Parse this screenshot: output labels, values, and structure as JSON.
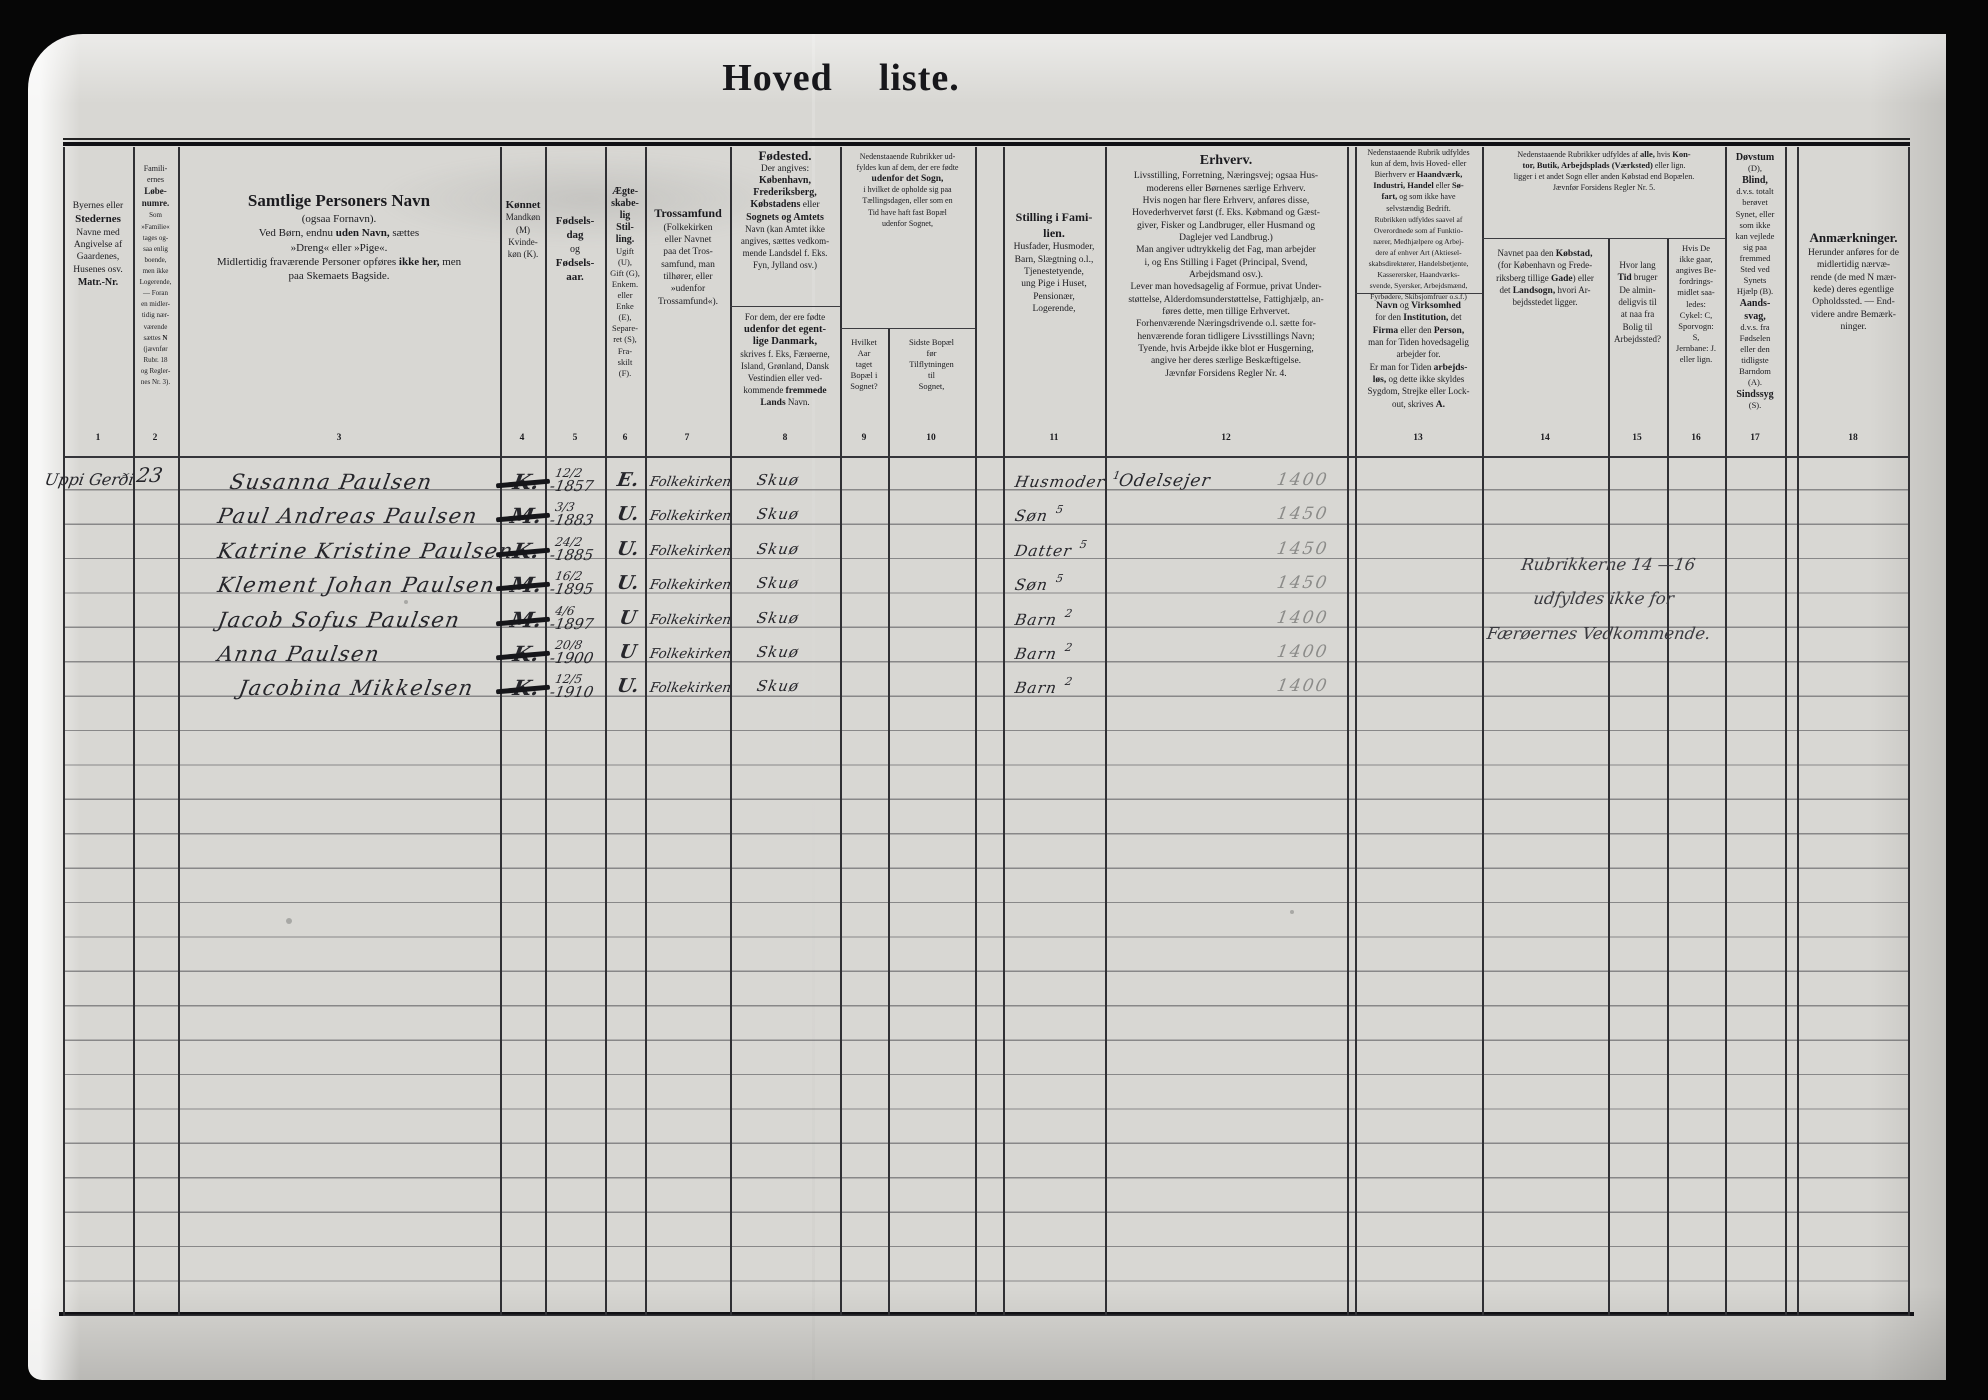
{
  "title": {
    "word1": "Hoved",
    "word2": "liste."
  },
  "col_numbers": [
    "1",
    "2",
    "3",
    "4",
    "5",
    "6",
    "7",
    "8",
    "9",
    "10",
    "11",
    "12",
    "13",
    "14",
    "15",
    "16",
    "17",
    "18"
  ],
  "header": {
    "col1": [
      {
        "t": "Byernes eller\n"
      },
      {
        "t": "Stedernes\n",
        "b": 1,
        "fs": 11
      },
      {
        "t": "Navne med\nAngivelse af\nGaardenes,\nHusenes osv.\n"
      },
      {
        "t": "Matr.-Nr.",
        "b": 1,
        "fs": 10
      }
    ],
    "col2": [
      {
        "t": "Famili-\nernes\n",
        "fs": 8
      },
      {
        "t": "Løbe-\nnumre.\n",
        "b": 1,
        "fs": 9
      },
      {
        "t": "Som\n»Familie«\ntages og-\nsaa enlig\nboende,\nmen ikke\nLogerende,\n— Foran\nen midler-\ntidig nær-\nværende\nsættes ",
        "fs": 7
      },
      {
        "t": "N\n",
        "b": 1,
        "fs": 7
      },
      {
        "t": "(jævnfør\nRubr. 18\nog Regler-\nnes Nr. 3).",
        "fs": 7
      }
    ],
    "col3": [
      {
        "t": "Samtlige Personers Navn\n",
        "b": 1,
        "fs": 17
      },
      {
        "t": "(ogsaa Fornavn).\n",
        "fs": 11
      },
      {
        "t": "Ved Børn, endnu ",
        "fs": 11
      },
      {
        "t": "uden Navn,",
        "b": 1,
        "fs": 11
      },
      {
        "t": " sættes\n»Dreng« eller »Pige«.\n",
        "fs": 11
      },
      {
        "t": "Midlertidig fraværende Personer opføres ",
        "fs": 11
      },
      {
        "t": "ikke her,",
        "b": 1,
        "fs": 11
      },
      {
        "t": " men\npaa Skemaets Bagside.",
        "fs": 11
      }
    ],
    "col4": [
      {
        "t": "Kønnet\n",
        "b": 1,
        "fs": 11
      },
      {
        "t": "Mandkøn\n(M)\nKvinde-\nkøn (K).",
        "fs": 9
      }
    ],
    "col5": [
      {
        "t": "Fødsels-\ndag\n",
        "b": 1,
        "fs": 11
      },
      {
        "t": "og\n",
        "fs": 10
      },
      {
        "t": "Fødsels-\naar.",
        "b": 1,
        "fs": 11
      }
    ],
    "col6": [
      {
        "t": "Ægte-\nskabe-\nlig\nStil-\nling.\n",
        "b": 1,
        "fs": 10
      },
      {
        "t": "Ugift\n(U),\nGift (G),\nEnkem.\neller\nEnke\n(E),\nSepare-\nret (S),\nFra-\nskilt\n(F).",
        "fs": 8.5
      }
    ],
    "col7": [
      {
        "t": "Trossamfund\n",
        "b": 1,
        "fs": 12
      },
      {
        "t": "(Folkekirken\neller Navnet\npaa det Tros-\nsamfund, man\ntilhører, eller\n»udenfor\nTrossamfund«).",
        "fs": 9.5
      }
    ],
    "col8a": [
      {
        "t": "Fødested.\n",
        "b": 1,
        "fs": 13
      },
      {
        "t": "Der angives:\n",
        "fs": 9.5
      },
      {
        "t": "København,\nFrederiksberg,\n",
        "b": 1,
        "fs": 10
      },
      {
        "t": "Købstadens",
        "b": 1,
        "fs": 10
      },
      {
        "t": " eller\n",
        "fs": 9.5
      },
      {
        "t": "Sognets og Amtets\n",
        "b": 1,
        "fs": 10
      },
      {
        "t": "Navn (kan Amtet ikke\nangives, sættes vedkom-\nmende Landsdel f. Eks.\nFyn, Jylland osv.)",
        "fs": 9
      }
    ],
    "col8b": [
      {
        "t": "For dem, der ere fødte\n",
        "fs": 9
      },
      {
        "t": "udenfor det egent-\nlige Danmark,\n",
        "b": 1,
        "fs": 10.5
      },
      {
        "t": "skrives f. Eks, Færøerne,\nIsland, Grønland, Dansk\nVestindien eller ved-\nkommende ",
        "fs": 9
      },
      {
        "t": "fremmede\nLands",
        "b": 1,
        "fs": 9.5
      },
      {
        "t": " Navn.",
        "fs": 9
      }
    ],
    "col9_10": [
      {
        "t": "Nedenstaaende Rubrikker ud-\nfyldes kun af dem, der ere fødte\n",
        "fs": 8
      },
      {
        "t": "udenfor det Sogn,\n",
        "b": 1,
        "fs": 9.5
      },
      {
        "t": "i hvilket de opholde sig paa\nTællingsdagen, eller som en\nTid have haft fast Bopæl\nudenfor Sognet,",
        "fs": 8
      }
    ],
    "col9": [
      {
        "t": "Hvilket\nAar\ntaget\nBopæl i\nSognet?",
        "fs": 8.5
      }
    ],
    "col10": [
      {
        "t": "Sidste Bopæl\nfør\nTilflytningen\ntil\nSognet,",
        "fs": 8.5
      }
    ],
    "col11": [
      {
        "t": "Stilling i Fami-\nlien.\n",
        "b": 1,
        "fs": 12
      },
      {
        "t": "Husfader, Husmoder,\nBarn, Slægtning o.l.,\nTjenestetyende,\nung Pige i Huset,\nPensionær,\nLogerende,",
        "fs": 9.5
      }
    ],
    "col12": [
      {
        "t": "Erhverv.\n",
        "b": 1,
        "fs": 14
      },
      {
        "t": "Livsstilling, Forretning, Næringsvej; ogsaa Hus-\nmoderens eller Børnenes særlige Erhverv.\nHvis nogen har flere Erhverv, anføres disse,\nHovederhvervet først (f. Eks. Købmand og Gæst-\ngiver, Fisker og Landbruger, eller Husmand og\nDaglejer ved Landbrug.)\nMan angiver udtrykkelig det Fag, man arbejder\ni, og Ens Stilling i Faget (Principal, Svend,\nArbejdsmand osv.).\nLever man hovedsagelig af Formue, privat Under-\nstøttelse, Alderdomsunderstøttelse, Fattighjælp, an-\nføres dette, men tillige Erhvervet.\nForhenværende Næringsdrivende o.l. sætte for-\nhenværende foran tidligere Livsstillings Navn;\nTyende, hvis Arbejde ikke blot er Husgerning,\nangive her deres særlige Beskæftigelse.\nJævnfør Forsidens Regler Nr. 4.",
        "fs": 9.5
      }
    ],
    "col13a": [
      {
        "t": "Nedenstaaende Rubrik udfyldes\nkun af dem, hvis Hoved- eller\nBierhverv er ",
        "fs": 8
      },
      {
        "t": "Haandværk,\nIndustri, Handel",
        "b": 1,
        "fs": 8.5
      },
      {
        "t": " eller ",
        "fs": 8
      },
      {
        "t": "Sø-\nfart,",
        "b": 1,
        "fs": 8.5
      },
      {
        "t": " og som ikke have\nselvstændig Bedrift.\n",
        "fs": 8
      },
      {
        "t": "Rubrikken udfyldes saavel af\nOverordnede som af Funktio-\nnærer, Medhjælpere og Arbej-\ndere af enhver Art (Aktiesel-\nskabsdirektører, Handelsbetjente,\nKasserersker, Haandværks-\nsvende, Syersker, Arbejdsmænd,\nFyrbødere, Skibsjomfruer o.s.f.)",
        "fs": 7.5
      }
    ],
    "col13b": [
      {
        "t": "Navn",
        "b": 1,
        "fs": 9.5
      },
      {
        "t": " og ",
        "fs": 9
      },
      {
        "t": "Virksomhed\n",
        "b": 1,
        "fs": 9.5
      },
      {
        "t": "for den ",
        "fs": 9
      },
      {
        "t": "Institution,",
        "b": 1,
        "fs": 9.5
      },
      {
        "t": " det\n",
        "fs": 9
      },
      {
        "t": "Firma",
        "b": 1,
        "fs": 9.5
      },
      {
        "t": " eller den ",
        "fs": 9
      },
      {
        "t": "Person,\n",
        "b": 1,
        "fs": 9.5
      },
      {
        "t": "man for Tiden hovedsagelig\narbejder for.\nEr man for Tiden ",
        "fs": 9
      },
      {
        "t": "arbejds-\nløs,",
        "b": 1,
        "fs": 9.5
      },
      {
        "t": " og dette ikke skyldes\nSygdom, Strejke eller Lock-\nout, skrives ",
        "fs": 9
      },
      {
        "t": "A.",
        "b": 1,
        "fs": 9.5
      }
    ],
    "col14_16": [
      {
        "t": "Nedenstaaende Rubrikker udfyldes af ",
        "fs": 8
      },
      {
        "t": "alle,",
        "b": 1,
        "fs": 8.5
      },
      {
        "t": " hvis ",
        "fs": 8
      },
      {
        "t": "Kon-\ntor, Butik, Arbejdsplads (Værksted)",
        "b": 1,
        "fs": 8.5
      },
      {
        "t": " eller lign.\nligger i et andet Sogn eller anden Købstad end Bopælen.\nJævnfør Forsidens Regler Nr. 5.",
        "fs": 8
      }
    ],
    "col14": [
      {
        "t": "Navnet paa den ",
        "fs": 9
      },
      {
        "t": "Købstad,\n",
        "b": 1,
        "fs": 9.5
      },
      {
        "t": "(for København og Frede-\nriksberg tillige ",
        "fs": 9
      },
      {
        "t": "Gade",
        "b": 1,
        "fs": 9.5
      },
      {
        "t": ") eller\ndet ",
        "fs": 9
      },
      {
        "t": "Landsogn,",
        "b": 1,
        "fs": 9.5
      },
      {
        "t": " hvori Ar-\nbejdsstedet ligger.",
        "fs": 9
      }
    ],
    "col15": [
      {
        "t": "Hvor lang\n",
        "fs": 9
      },
      {
        "t": "Tid",
        "b": 1,
        "fs": 9.5
      },
      {
        "t": " bruger\nDe almin-\ndeligvis til\nat naa fra\nBolig til\nArbejdssted?",
        "fs": 9
      }
    ],
    "col16": [
      {
        "t": "Hvis De\nikke gaar,\nangives Be-\nfordrings-\nmidlet saa-\nledes:\nCykel: C,\nSporvogn:\nS,\nJernbane: J.\neller lign.",
        "fs": 8.5
      }
    ],
    "col17": [
      {
        "t": "Døvstum\n",
        "b": 1,
        "fs": 10
      },
      {
        "t": "(D),\n",
        "fs": 8.5
      },
      {
        "t": "Blind,\n",
        "b": 1,
        "fs": 10
      },
      {
        "t": "d.v.s. totalt\nberøvet\nSynet, eller\nsom ikke\nkan vejlede\nsig paa\nfremmed\nSted ved\nSynets\nHjælp (B).\n",
        "fs": 8.5
      },
      {
        "t": "Aands-\nsvag,\n",
        "b": 1,
        "fs": 10
      },
      {
        "t": "d.v.s. fra\nFødselen\neller den\ntidligste\nBarndom\n(A).\n",
        "fs": 8.5
      },
      {
        "t": "Sindssyg\n",
        "b": 1,
        "fs": 10
      },
      {
        "t": "(S).",
        "fs": 8.5
      }
    ],
    "col18": [
      {
        "t": "Anmærkninger.\n",
        "b": 1,
        "fs": 13
      },
      {
        "t": "Herunder anføres for de\nmidlertidig nærvæ-\nrende (de med N mær-\nkede) deres egentlige\nOpholdssted. — End-\nvidere andre Bemærk-\nninger.",
        "fs": 9.5
      }
    ]
  },
  "entries": [
    {
      "place": "Uppi Gerði",
      "family_no": "23",
      "name": "Susanna Paulsen",
      "sex": "K.",
      "birth_day": "12/2",
      "birth_year": "-1857",
      "marital": "E.",
      "religion": "Folkekirken",
      "birthplace": "Skuø",
      "position": "Husmoder",
      "position_note": "1",
      "occupation": "Odelsejer",
      "code": "1400"
    },
    {
      "name": "Paul Andreas Paulsen",
      "sex": "M.",
      "birth_day": "3/3",
      "birth_year": "-1883",
      "marital": "U.",
      "religion": "Folkekirken",
      "birthplace": "Skuø",
      "position": "Søn",
      "position_note": "5",
      "code": "1450"
    },
    {
      "name": "Katrine Kristine Paulsen",
      "sex": "K.",
      "birth_day": "24/2",
      "birth_year": "-1885",
      "marital": "U.",
      "religion": "Folkekirken",
      "birthplace": "Skuø",
      "position": "Datter",
      "position_note": "5",
      "code": "1450"
    },
    {
      "name": "Klement Johan Paulsen",
      "sex": "M.",
      "birth_day": "16/2",
      "birth_year": "-1895",
      "marital": "U.",
      "religion": "Folkekirken",
      "birthplace": "Skuø",
      "position": "Søn",
      "position_note": "5",
      "code": "1450"
    },
    {
      "name": "Jacob Sofus Paulsen",
      "sex": "M.",
      "birth_day": "4/6",
      "birth_year": "-1897",
      "marital": "U",
      "religion": "Folkekirken",
      "birthplace": "Skuø",
      "position": "Barn",
      "position_note": "2",
      "code": "1400"
    },
    {
      "name": "Anna Paulsen",
      "sex": "K.",
      "birth_day": "20/8",
      "birth_year": "-1900",
      "marital": "U",
      "religion": "Folkekirken",
      "birthplace": "Skuø",
      "position": "Barn",
      "position_note": "2",
      "code": "1400"
    },
    {
      "name": "Jacobina Mikkelsen",
      "sex": "K.",
      "birth_day": "12/5",
      "birth_year": "-1910",
      "marital": "U.",
      "religion": "Folkekirken",
      "birthplace": "Skuø",
      "position": "Barn",
      "position_note": "2",
      "code": "1400"
    }
  ],
  "annotation": {
    "text": "Rubrikkerne 14 —16\nudfyldes ikke for\nFærøernes Vedkommende."
  }
}
